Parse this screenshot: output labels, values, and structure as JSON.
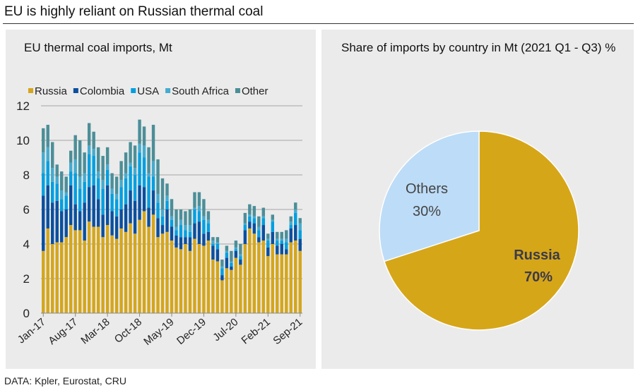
{
  "title": "EU is highly reliant on Russian thermal coal",
  "footer": "DATA: Kpler, Eurostat, CRU",
  "chart_data": [
    {
      "type": "bar",
      "stacked": true,
      "title": "EU thermal coal imports, Mt",
      "ylim": [
        0,
        12
      ],
      "yticks": [
        "0",
        "2",
        "4",
        "6",
        "8",
        "10",
        "12"
      ],
      "xtick_labels": [
        "Jan-17",
        "Aug-17",
        "Mar-18",
        "Oct-18",
        "May-19",
        "Dec-19",
        "Jul-20",
        "Feb-21",
        "Sep-21"
      ],
      "first_month": "Jan-17",
      "last_month": "Sep-21",
      "grid": true,
      "legend_position": "top",
      "series": [
        {
          "name": "Russia",
          "color": "#D4A61C",
          "values": [
            3.6,
            4.9,
            4.0,
            4.1,
            4.1,
            4.4,
            5.1,
            4.8,
            4.8,
            4.2,
            5.3,
            5.0,
            5.0,
            4.4,
            5.1,
            4.5,
            4.3,
            4.9,
            4.7,
            5.2,
            4.6,
            5.4,
            5.9,
            5.0,
            5.7,
            4.4,
            4.6,
            4.7,
            4.2,
            3.8,
            3.7,
            4.0,
            3.6,
            4.3,
            4.0,
            3.9,
            4.2,
            3.1,
            3.0,
            1.9,
            2.6,
            2.5,
            3.2,
            2.8,
            4.0,
            4.9,
            4.6,
            4.1,
            4.2,
            3.3,
            4.0,
            3.4,
            3.4,
            3.4,
            4.1,
            4.2,
            3.6
          ]
        },
        {
          "name": "Colombia",
          "color": "#0B4F9E",
          "values": [
            3.2,
            2.5,
            2.4,
            2.4,
            1.8,
            1.6,
            2.3,
            1.5,
            1.1,
            2.2,
            2.0,
            2.4,
            1.6,
            1.3,
            2.3,
            1.4,
            1.3,
            1.1,
            1.6,
            1.9,
            1.9,
            2.0,
            1.4,
            1.1,
            1.4,
            1.1,
            0.5,
            1.3,
            0.8,
            0.7,
            0.7,
            0.4,
            0.8,
            0.9,
            1.3,
            0.7,
            0.5,
            0.8,
            0.7,
            0.3,
            0.6,
            0.2,
            0.4,
            0.3,
            0.8,
            0.4,
            0.6,
            0.3,
            0.9,
            0.5,
            0.7,
            0.5,
            0.6,
            0.3,
            0.8,
            0.9,
            0.7
          ]
        },
        {
          "name": "USA",
          "color": "#009FE0",
          "values": [
            1.3,
            1.4,
            1.2,
            1.0,
            0.7,
            0.8,
            0.8,
            1.8,
            1.3,
            1.2,
            1.9,
            1.7,
            1.2,
            1.5,
            0.9,
            1.0,
            1.0,
            1.3,
            1.5,
            1.4,
            1.5,
            1.9,
            1.7,
            1.8,
            0.8,
            0.9,
            0.5,
            0.5,
            0.4,
            0.3,
            0.7,
            0.4,
            0.3,
            0.8,
            0.6,
            0.8,
            0.5,
            0.1,
            0.3,
            0.4,
            0.3,
            0.2,
            0.1,
            0.2,
            0.3,
            0.3,
            0.3,
            0.4,
            0.4,
            0.4,
            0.6,
            0.3,
            0.2,
            0.4,
            0.2,
            0.7,
            0.5
          ]
        },
        {
          "name": "South Africa",
          "color": "#45ABCF",
          "values": [
            1.2,
            0.8,
            0.8,
            0.4,
            0.5,
            0.2,
            0.5,
            0.8,
            0.7,
            0.5,
            0.5,
            0.4,
            0.4,
            0.5,
            0.3,
            0.3,
            0.3,
            0.4,
            0.3,
            0.2,
            0.4,
            0.5,
            0.7,
            0.2,
            0.9,
            0.5,
            0.4,
            0.3,
            0.2,
            0.2,
            0.3,
            0.3,
            0.4,
            0.1,
            0.3,
            0.2,
            0.2,
            0.2,
            0.1,
            0.1,
            0.1,
            0.1,
            0.1,
            0.1,
            0.1,
            0.1,
            0.1,
            0.2,
            0.1,
            0.1,
            0.1,
            0.1,
            0.1,
            0.2,
            0.2,
            0.2,
            0.4
          ]
        },
        {
          "name": "Other",
          "color": "#4C8E98",
          "values": [
            1.4,
            1.3,
            1.5,
            0.7,
            1.1,
            0.9,
            0.7,
            1.4,
            2.1,
            1.2,
            1.3,
            1.0,
            1.4,
            1.4,
            1.0,
            0.9,
            1.0,
            1.1,
            1.2,
            1.2,
            1.3,
            1.4,
            1.1,
            1.5,
            2.1,
            2.0,
            1.8,
            0.7,
            1.0,
            1.0,
            0.6,
            0.8,
            0.9,
            0.9,
            0.8,
            1.0,
            0.5,
            0.2,
            0.3,
            0.4,
            0.3,
            0.6,
            0.4,
            0.6,
            0.6,
            0.6,
            0.6,
            0.6,
            0.5,
            0.3,
            0.3,
            0.4,
            0.4,
            0.5,
            0.3,
            0.4,
            0.3
          ]
        }
      ]
    },
    {
      "type": "pie",
      "title": "Share of imports by country in Mt (2021 Q1 - Q3) %",
      "slices": [
        {
          "label": "Russia",
          "value": 70,
          "value_label": "70%",
          "color": "#D6A619"
        },
        {
          "label": "Others",
          "value": 30,
          "value_label": "30%",
          "color": "#BDDCF7"
        }
      ]
    }
  ]
}
